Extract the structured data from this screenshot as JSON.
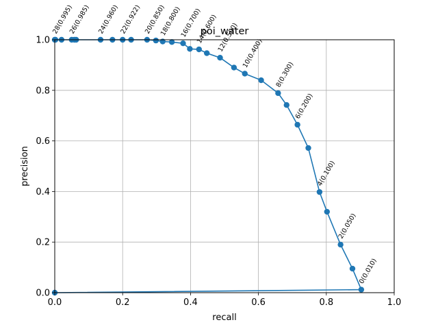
{
  "chart_data": {
    "type": "line",
    "title": "poi_water",
    "xlabel": "recall",
    "ylabel": "precision",
    "xlim": [
      0,
      1
    ],
    "ylim": [
      0,
      1
    ],
    "xticks": [
      "0.0",
      "0.2",
      "0.4",
      "0.6",
      "0.8",
      "1.0"
    ],
    "yticks": [
      "0.0",
      "0.2",
      "0.4",
      "0.6",
      "0.8",
      "1.0"
    ],
    "grid": true,
    "legend": false,
    "colors": {
      "series": "#1f77b4",
      "grid": "#b0b0b0"
    },
    "series": [
      {
        "points": [
          {
            "recall": 0.0,
            "precision": 1.0
          },
          {
            "recall": 0.002,
            "precision": 1.0
          },
          {
            "recall": 0.02,
            "precision": 1.0
          },
          {
            "recall": 0.05,
            "precision": 1.0
          },
          {
            "recall": 0.058,
            "precision": 1.0
          },
          {
            "recall": 0.063,
            "precision": 1.0
          },
          {
            "recall": 0.135,
            "precision": 1.0
          },
          {
            "recall": 0.17,
            "precision": 1.0
          },
          {
            "recall": 0.2,
            "precision": 1.0
          },
          {
            "recall": 0.225,
            "precision": 1.0
          },
          {
            "recall": 0.272,
            "precision": 1.0
          },
          {
            "recall": 0.298,
            "precision": 0.997
          },
          {
            "recall": 0.318,
            "precision": 0.993
          },
          {
            "recall": 0.345,
            "precision": 0.991
          },
          {
            "recall": 0.378,
            "precision": 0.986
          },
          {
            "recall": 0.398,
            "precision": 0.964
          },
          {
            "recall": 0.425,
            "precision": 0.962
          },
          {
            "recall": 0.448,
            "precision": 0.947
          },
          {
            "recall": 0.487,
            "precision": 0.929
          },
          {
            "recall": 0.528,
            "precision": 0.89
          },
          {
            "recall": 0.56,
            "precision": 0.866
          },
          {
            "recall": 0.608,
            "precision": 0.84
          },
          {
            "recall": 0.658,
            "precision": 0.789
          },
          {
            "recall": 0.683,
            "precision": 0.742
          },
          {
            "recall": 0.715,
            "precision": 0.664
          },
          {
            "recall": 0.747,
            "precision": 0.572
          },
          {
            "recall": 0.78,
            "precision": 0.398
          },
          {
            "recall": 0.802,
            "precision": 0.32
          },
          {
            "recall": 0.842,
            "precision": 0.19
          },
          {
            "recall": 0.877,
            "precision": 0.095
          },
          {
            "recall": 0.903,
            "precision": 0.012
          },
          {
            "recall": 0.0,
            "precision": 0.0
          }
        ]
      }
    ],
    "annotations": [
      {
        "text": "28(0.995)",
        "recall": 0.0,
        "precision": 1.0
      },
      {
        "text": "26(0.985)",
        "recall": 0.05,
        "precision": 1.0
      },
      {
        "text": "24(0.960)",
        "recall": 0.135,
        "precision": 1.0
      },
      {
        "text": "22(0.922)",
        "recall": 0.2,
        "precision": 1.0
      },
      {
        "text": "20(0.850)",
        "recall": 0.272,
        "precision": 1.0
      },
      {
        "text": "18(0.800)",
        "recall": 0.318,
        "precision": 0.993
      },
      {
        "text": "16(0.700)",
        "recall": 0.378,
        "precision": 0.986
      },
      {
        "text": "14(0.600)",
        "recall": 0.425,
        "precision": 0.962
      },
      {
        "text": "12(0.500)",
        "recall": 0.487,
        "precision": 0.929
      },
      {
        "text": "10(0.400)",
        "recall": 0.56,
        "precision": 0.866
      },
      {
        "text": "8(0.300)",
        "recall": 0.658,
        "precision": 0.789
      },
      {
        "text": "6(0.200)",
        "recall": 0.715,
        "precision": 0.664
      },
      {
        "text": "4(0.100)",
        "recall": 0.78,
        "precision": 0.398
      },
      {
        "text": "2(0.050)",
        "recall": 0.842,
        "precision": 0.19
      },
      {
        "text": "0(0.010)",
        "recall": 0.903,
        "precision": 0.012
      }
    ]
  }
}
